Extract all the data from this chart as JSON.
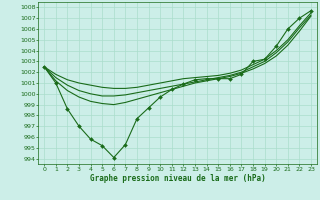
{
  "background_color": "#cceee8",
  "grid_color": "#aaddcc",
  "line_color": "#1a6b1a",
  "title": "Graphe pression niveau de la mer (hPa)",
  "xlim": [
    -0.5,
    23.5
  ],
  "ylim": [
    993.5,
    1008.5
  ],
  "yticks": [
    994,
    995,
    996,
    997,
    998,
    999,
    1000,
    1001,
    1002,
    1003,
    1004,
    1005,
    1006,
    1007,
    1008
  ],
  "xticks": [
    0,
    1,
    2,
    3,
    4,
    5,
    6,
    7,
    8,
    9,
    10,
    11,
    12,
    13,
    14,
    15,
    16,
    17,
    18,
    19,
    20,
    21,
    22,
    23
  ],
  "line1_x": [
    0,
    1,
    2,
    3,
    4,
    5,
    6,
    7,
    8,
    9,
    10,
    11,
    12,
    13,
    14,
    15,
    16,
    17,
    18,
    19,
    20,
    21,
    22,
    23
  ],
  "line1_y": [
    1002.5,
    1001.0,
    998.6,
    997.0,
    995.8,
    995.2,
    994.1,
    995.3,
    997.7,
    998.7,
    999.7,
    1000.4,
    1000.9,
    1001.3,
    1001.4,
    1001.4,
    1001.4,
    1001.8,
    1003.0,
    1003.2,
    1004.4,
    1006.0,
    1007.0,
    1007.7
  ],
  "line2_x": [
    0,
    1,
    2,
    3,
    4,
    5,
    6,
    7,
    8,
    9,
    10,
    11,
    12,
    13,
    14,
    15,
    16,
    17,
    18,
    19,
    20,
    21,
    22,
    23
  ],
  "line2_y": [
    1002.5,
    1001.2,
    1000.3,
    999.7,
    999.3,
    999.1,
    999.0,
    999.2,
    999.5,
    999.8,
    1000.1,
    1000.4,
    1000.7,
    1001.0,
    1001.2,
    1001.4,
    1001.6,
    1001.9,
    1002.3,
    1002.8,
    1003.5,
    1004.5,
    1005.8,
    1007.2
  ],
  "line3_x": [
    0,
    1,
    2,
    3,
    4,
    5,
    6,
    7,
    8,
    9,
    10,
    11,
    12,
    13,
    14,
    15,
    16,
    17,
    18,
    19,
    20,
    21,
    22,
    23
  ],
  "line3_y": [
    1002.5,
    1001.5,
    1000.8,
    1000.3,
    1000.0,
    999.8,
    999.8,
    999.9,
    1000.1,
    1000.3,
    1000.5,
    1000.7,
    1000.9,
    1001.1,
    1001.3,
    1001.5,
    1001.7,
    1002.0,
    1002.5,
    1003.0,
    1003.8,
    1004.8,
    1006.1,
    1007.3
  ],
  "line4_x": [
    0,
    1,
    2,
    3,
    4,
    5,
    6,
    7,
    8,
    9,
    10,
    11,
    12,
    13,
    14,
    15,
    16,
    17,
    18,
    19,
    20,
    21,
    22,
    23
  ],
  "line4_y": [
    1002.5,
    1001.8,
    1001.3,
    1001.0,
    1000.8,
    1000.6,
    1000.5,
    1000.5,
    1000.6,
    1000.8,
    1001.0,
    1001.2,
    1001.4,
    1001.5,
    1001.6,
    1001.7,
    1001.9,
    1002.2,
    1002.7,
    1003.2,
    1004.0,
    1005.0,
    1006.3,
    1007.5
  ]
}
